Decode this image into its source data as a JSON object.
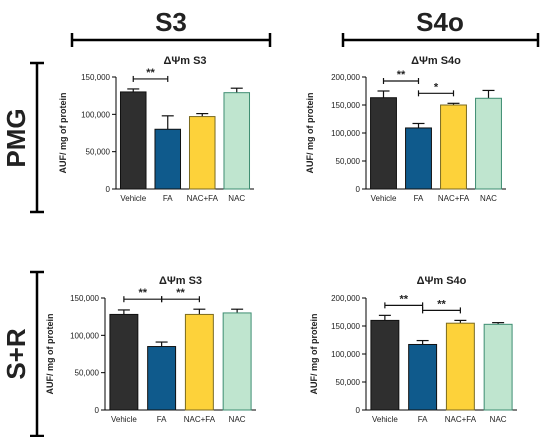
{
  "headers": {
    "col1": "S3",
    "col2": "S4o",
    "row1": "PMG",
    "row2": "S+R"
  },
  "colors": {
    "Vehicle": "#2f2f2f",
    "FA": "#0f5a8c",
    "NAC+FA": "#fdd23a",
    "NAC": "#bfe5cf",
    "line": "#000000"
  },
  "chart_data": [
    {
      "type": "bar",
      "title": "ΔΨm S3",
      "ylabel": "AUF/ mg of protein",
      "categories": [
        "Vehicle",
        "FA",
        "NAC+FA",
        "NAC"
      ],
      "values": [
        130000,
        80000,
        97000,
        129000
      ],
      "errors": [
        4000,
        18000,
        4000,
        6000
      ],
      "ylim": [
        0,
        150000
      ],
      "yticks": [
        "0",
        "50,000",
        "100,000",
        "150,000"
      ],
      "significance": [
        {
          "from": "Vehicle",
          "to": "FA",
          "label": "**"
        }
      ]
    },
    {
      "type": "bar",
      "title": "ΔΨm S4o",
      "ylabel": "AUF/ mg of protein",
      "categories": [
        "Vehicle",
        "FA",
        "NAC+FA",
        "NAC"
      ],
      "values": [
        163000,
        109000,
        150000,
        162000
      ],
      "errors": [
        12000,
        8000,
        3000,
        14000
      ],
      "ylim": [
        0,
        200000
      ],
      "yticks": [
        "0",
        "50,000",
        "100,000",
        "150,000",
        "200,000"
      ],
      "significance": [
        {
          "from": "Vehicle",
          "to": "FA",
          "label": "**"
        },
        {
          "from": "FA",
          "to": "NAC+FA",
          "label": "*"
        }
      ]
    },
    {
      "type": "bar",
      "title": "ΔΨm S3",
      "ylabel": "AUF/ mg of protein",
      "categories": [
        "Vehicle",
        "FA",
        "NAC+FA",
        "NAC"
      ],
      "values": [
        128000,
        85000,
        128000,
        130000
      ],
      "errors": [
        6000,
        6000,
        7000,
        5000
      ],
      "ylim": [
        0,
        150000
      ],
      "yticks": [
        "0",
        "50,000",
        "100,000",
        "150,000"
      ],
      "significance": [
        {
          "from": "Vehicle",
          "to": "FA",
          "label": "**"
        },
        {
          "from": "FA",
          "to": "NAC+FA",
          "label": "**"
        }
      ]
    },
    {
      "type": "bar",
      "title": "ΔΨm S4o",
      "ylabel": "AUF/ mg of protein",
      "categories": [
        "Vehicle",
        "FA",
        "NAC+FA",
        "NAC"
      ],
      "values": [
        160000,
        117000,
        155000,
        153000
      ],
      "errors": [
        9000,
        7000,
        5000,
        3000
      ],
      "ylim": [
        0,
        200000
      ],
      "yticks": [
        "0",
        "50,000",
        "100,000",
        "150,000",
        "200,000"
      ],
      "significance": [
        {
          "from": "Vehicle",
          "to": "FA",
          "label": "**"
        },
        {
          "from": "FA",
          "to": "NAC+FA",
          "label": "**"
        }
      ]
    }
  ]
}
